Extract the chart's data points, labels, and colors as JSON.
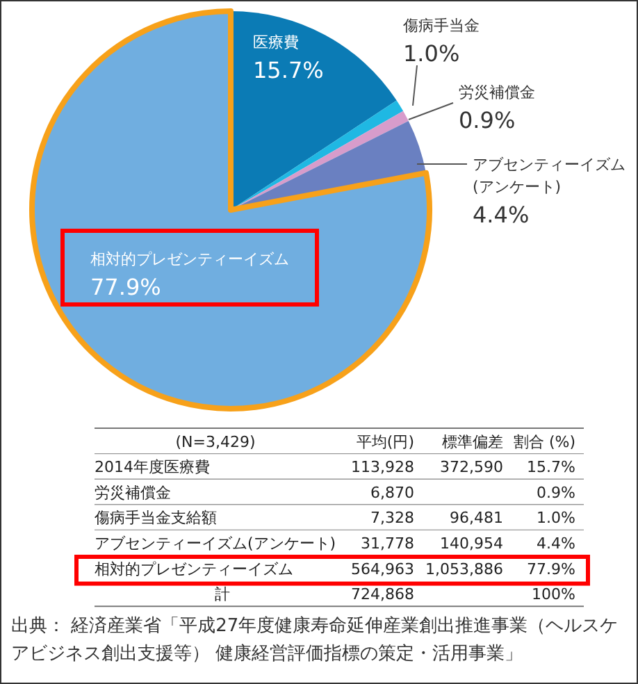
{
  "chart_data": {
    "type": "pie",
    "categories": [
      "医療費",
      "傷病手当金",
      "労災補償金",
      "アブセンティーイズム(アンケート)",
      "相対的プレゼンティーイズム"
    ],
    "values": [
      15.7,
      1.0,
      0.9,
      4.4,
      77.9
    ],
    "colors": [
      "#0b7bb5",
      "#1fb8e3",
      "#d79ccb",
      "#6a80c1",
      "#70aee0"
    ],
    "value_labels": [
      "15.7%",
      "1.0%",
      "0.9%",
      "4.4%",
      "77.9%"
    ],
    "annotations": [
      "(N=3,429)",
      "平均(円)",
      "標準偏差",
      "割合 (%)",
      "2014年度医療費",
      "113,928",
      "372,590",
      "15.7%",
      "労災補償金",
      "6,870",
      null,
      "0.9%",
      "傷病手当金支給額",
      "7,328",
      "96,481",
      "1.0%",
      "アブセンティーイズム(アンケート)",
      "31,778",
      "140,954",
      "4.4%",
      "相対的プレゼンティーイズム",
      "564,963",
      "1,053,886",
      "77.9%",
      "計",
      "724,868",
      null,
      "100%",
      "出典： 経済産業省「平成27年度健康寿命延伸産業創出推進事業（ヘルスケアビジネス創出支援等） 健康経営評価指標の策定・活用事業」"
    ]
  }
}
